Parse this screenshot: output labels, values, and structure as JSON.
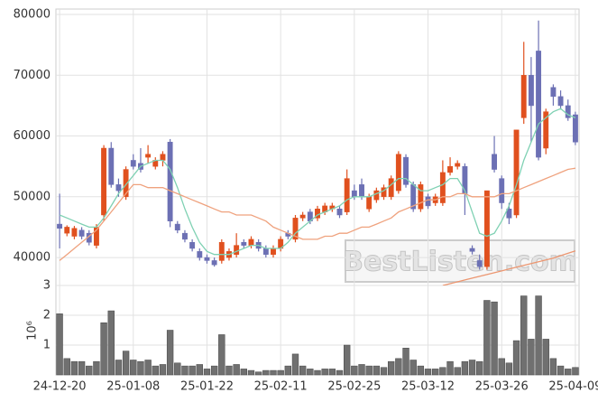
{
  "chart_data": {
    "type": "candlestick",
    "categories": [
      "24-12-20",
      null,
      null,
      null,
      null,
      null,
      null,
      null,
      null,
      null,
      "25-01-08",
      null,
      null,
      null,
      null,
      null,
      null,
      null,
      null,
      null,
      "25-01-22",
      null,
      null,
      null,
      null,
      null,
      null,
      null,
      null,
      null,
      "25-02-11",
      null,
      null,
      null,
      null,
      null,
      null,
      null,
      null,
      null,
      "25-02-25",
      null,
      null,
      null,
      null,
      null,
      null,
      null,
      null,
      null,
      "25-03-12",
      null,
      null,
      null,
      null,
      null,
      null,
      null,
      null,
      null,
      "25-03-26",
      null,
      null,
      null,
      null,
      null,
      null,
      null,
      null,
      null,
      "25-04-09"
    ],
    "open": [
      45500,
      44000,
      43500,
      44500,
      44000,
      42000,
      47000,
      58000,
      52000,
      50000,
      56000,
      55500,
      56500,
      55000,
      56000,
      59000,
      45500,
      44000,
      42500,
      41000,
      40000,
      39500,
      39500,
      40000,
      40500,
      42500,
      42000,
      42500,
      41500,
      40500,
      41500,
      44000,
      43000,
      46500,
      47500,
      46500,
      47500,
      48000,
      48000,
      47500,
      51000,
      52000,
      48000,
      49500,
      50000,
      50000,
      51000,
      56500,
      52000,
      48000,
      50000,
      49000,
      49000,
      54000,
      55000,
      55000,
      41500,
      39500,
      38500,
      57000,
      53000,
      48000,
      47000,
      63000,
      70000,
      74000,
      58000,
      68000,
      66500,
      65000,
      63500
    ],
    "high": [
      50500,
      45300,
      45200,
      45000,
      44500,
      45500,
      58500,
      59000,
      53000,
      55000,
      57000,
      58000,
      58500,
      56500,
      57500,
      59500,
      46000,
      44500,
      43000,
      41500,
      40500,
      40000,
      43000,
      41500,
      44000,
      43000,
      43500,
      43000,
      42000,
      42000,
      43500,
      44500,
      47000,
      47500,
      48000,
      48500,
      49000,
      49000,
      48500,
      54500,
      52000,
      53000,
      50500,
      51500,
      52000,
      53500,
      57500,
      57000,
      52500,
      52500,
      50500,
      50500,
      56000,
      56500,
      56000,
      55500,
      42000,
      40500,
      51000,
      60000,
      53500,
      49000,
      61000,
      75500,
      73000,
      79000,
      64500,
      68500,
      67500,
      66000,
      64000
    ],
    "low": [
      41500,
      43500,
      43000,
      43000,
      42000,
      41500,
      46000,
      51500,
      50000,
      49500,
      54500,
      54000,
      55500,
      54500,
      55000,
      45000,
      44000,
      42500,
      41000,
      39500,
      39000,
      38500,
      39000,
      39500,
      40000,
      41500,
      41500,
      41000,
      40000,
      40000,
      41000,
      43000,
      42500,
      46000,
      45500,
      46000,
      47000,
      47500,
      46500,
      47000,
      49500,
      49500,
      47500,
      49000,
      49500,
      49500,
      50500,
      51500,
      47500,
      47500,
      48000,
      48500,
      48500,
      53500,
      54500,
      47000,
      40500,
      38000,
      38000,
      54000,
      48000,
      45500,
      46500,
      62000,
      59000,
      56000,
      57000,
      65000,
      64500,
      62500,
      58500
    ],
    "close": [
      44800,
      45000,
      44800,
      43500,
      42500,
      45000,
      58000,
      52000,
      51000,
      54500,
      55000,
      54500,
      57000,
      56000,
      57000,
      46000,
      44500,
      43000,
      41500,
      40000,
      39500,
      38800,
      42500,
      41000,
      42000,
      42000,
      43000,
      41500,
      40500,
      41500,
      43000,
      43500,
      46500,
      47000,
      46000,
      48000,
      48500,
      48500,
      47000,
      53000,
      50000,
      50000,
      50000,
      51000,
      51500,
      53000,
      57000,
      52000,
      48000,
      52000,
      48500,
      50000,
      54000,
      55000,
      55500,
      50500,
      41000,
      38500,
      51000,
      54500,
      49000,
      46500,
      61000,
      70000,
      65000,
      56500,
      64000,
      66500,
      65000,
      63000,
      59000
    ],
    "up_color": "#e0501e",
    "down_color": "#6c70b4",
    "ylim": [
      35400,
      80900
    ],
    "yticks": [
      40000,
      50000,
      60000,
      70000,
      80000
    ],
    "grid": true,
    "ma_lines": [
      {
        "color": "#7fd1b3",
        "values": [
          47000,
          46500,
          46000,
          45500,
          45000,
          45000,
          46500,
          48500,
          50500,
          52000,
          53500,
          55000,
          55500,
          56000,
          56000,
          54500,
          51500,
          48000,
          45000,
          42500,
          41000,
          40500,
          40500,
          40500,
          41000,
          41500,
          42000,
          42000,
          41500,
          41500,
          41500,
          42500,
          44000,
          45000,
          46000,
          47000,
          47500,
          48000,
          48500,
          49500,
          50000,
          50000,
          50000,
          50500,
          51000,
          52000,
          53000,
          53000,
          52000,
          51000,
          51000,
          51500,
          52000,
          53000,
          53000,
          51000,
          47500,
          44000,
          43500,
          44000,
          46000,
          48500,
          52000,
          56000,
          59000,
          62000,
          63000,
          64000,
          64500,
          63500,
          63000
        ]
      },
      {
        "color": "#efa27e",
        "values": [
          39500,
          40500,
          41500,
          42500,
          43500,
          44500,
          46000,
          47500,
          49000,
          50500,
          52000,
          52000,
          51500,
          51500,
          51500,
          51000,
          50500,
          50000,
          49500,
          49000,
          48500,
          48000,
          47500,
          47500,
          47000,
          47000,
          47000,
          46500,
          46000,
          45000,
          44500,
          44000,
          43500,
          43000,
          43000,
          43000,
          43500,
          43500,
          44000,
          44000,
          44500,
          45000,
          45000,
          45500,
          46000,
          46500,
          47500,
          48000,
          48500,
          49000,
          49500,
          49500,
          50000,
          50000,
          50500,
          50500,
          50000,
          50000,
          50000,
          50000,
          50500,
          50500,
          51000,
          51500,
          52000,
          52500,
          53000,
          53500,
          54000,
          54500,
          54700
        ]
      },
      {
        "color": "#ec9670",
        "values": [
          null,
          null,
          null,
          null,
          null,
          null,
          null,
          null,
          null,
          null,
          null,
          null,
          null,
          null,
          null,
          null,
          null,
          null,
          null,
          null,
          null,
          null,
          null,
          null,
          null,
          null,
          null,
          null,
          null,
          null,
          null,
          null,
          null,
          null,
          null,
          null,
          null,
          null,
          null,
          null,
          null,
          null,
          null,
          null,
          null,
          null,
          null,
          null,
          null,
          null,
          null,
          null,
          35400,
          35700,
          36000,
          36300,
          36600,
          36900,
          37200,
          37500,
          37800,
          38100,
          38400,
          38700,
          39000,
          39300,
          39600,
          39900,
          40300,
          40700,
          41100
        ]
      }
    ],
    "watermark": "BestListen.com",
    "volume": {
      "type": "bar",
      "color": "#707070",
      "y_label": "10⁶",
      "ylim": [
        0,
        3
      ],
      "yticks": [
        1,
        2,
        3
      ],
      "values": [
        2.05,
        0.55,
        0.45,
        0.45,
        0.3,
        0.45,
        1.75,
        2.15,
        0.5,
        0.8,
        0.5,
        0.45,
        0.5,
        0.3,
        0.35,
        1.5,
        0.4,
        0.3,
        0.3,
        0.35,
        0.2,
        0.3,
        1.35,
        0.3,
        0.35,
        0.2,
        0.15,
        0.1,
        0.15,
        0.15,
        0.15,
        0.3,
        0.7,
        0.3,
        0.2,
        0.15,
        0.2,
        0.2,
        0.15,
        1.0,
        0.3,
        0.35,
        0.3,
        0.3,
        0.25,
        0.45,
        0.55,
        0.9,
        0.5,
        0.3,
        0.2,
        0.2,
        0.25,
        0.45,
        0.25,
        0.45,
        0.5,
        0.45,
        2.5,
        2.45,
        0.55,
        0.4,
        1.15,
        2.65,
        1.2,
        2.65,
        1.2,
        0.55,
        0.3,
        0.2,
        0.25
      ]
    }
  }
}
